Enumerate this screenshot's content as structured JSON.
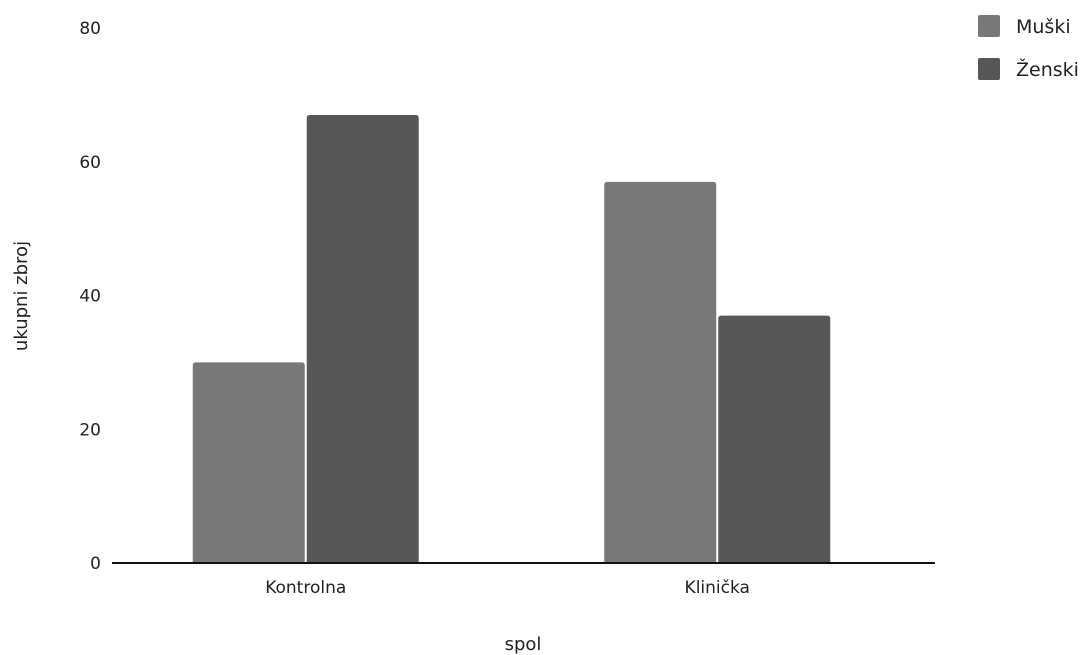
{
  "chart_data": {
    "type": "bar",
    "title": "",
    "xlabel": "spol",
    "ylabel": "ukupni zbroj",
    "categories": [
      "Kontrolna",
      "Klinička"
    ],
    "series": [
      {
        "name": "Muški",
        "values": [
          30,
          57
        ],
        "color": "#787878"
      },
      {
        "name": "Ženski",
        "values": [
          67,
          37
        ],
        "color": "#575757"
      }
    ],
    "ylim": [
      0,
      80
    ],
    "yticks": [
      0,
      20,
      40,
      60,
      80
    ],
    "grid": false,
    "legend": "top-right"
  }
}
